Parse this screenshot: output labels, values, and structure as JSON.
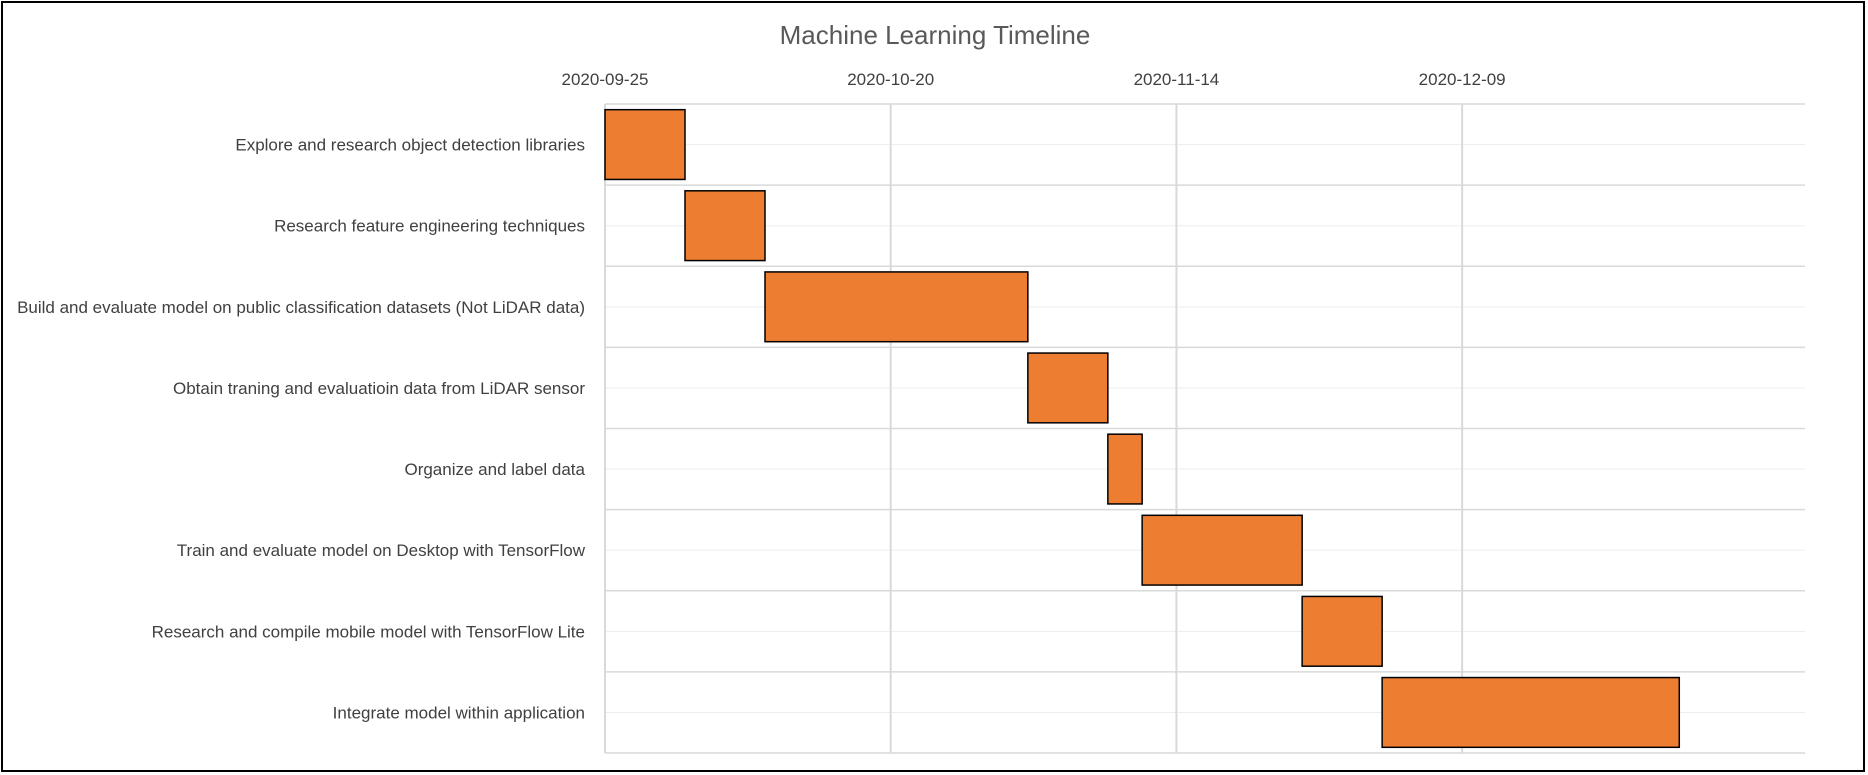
{
  "chart_data": {
    "type": "bar",
    "orientation": "horizontal",
    "subtype": "gantt",
    "title": "Machine Learning Timeline",
    "x_axis_position": "top",
    "grid": true,
    "xlim": [
      "2020-09-25",
      "2021-01-08"
    ],
    "x_ticks": [
      "2020-09-25",
      "2020-10-20",
      "2020-11-14",
      "2020-12-09"
    ],
    "tasks": [
      {
        "name": "Explore and research object detection libraries",
        "start": "2020-09-25",
        "end": "2020-10-02"
      },
      {
        "name": "Research feature engineering techniques",
        "start": "2020-10-02",
        "end": "2020-10-09"
      },
      {
        "name": "Build and evaluate model on public classification datasets (Not LiDAR data)",
        "start": "2020-10-09",
        "end": "2020-11-01"
      },
      {
        "name": "Obtain traning and evaluatioin data from LiDAR sensor",
        "start": "2020-11-01",
        "end": "2020-11-08"
      },
      {
        "name": "Organize and label data",
        "start": "2020-11-08",
        "end": "2020-11-11"
      },
      {
        "name": "Train and evaluate model on Desktop with TensorFlow",
        "start": "2020-11-11",
        "end": "2020-11-25"
      },
      {
        "name": "Research and compile mobile model with TensorFlow Lite",
        "start": "2020-11-25",
        "end": "2020-12-02"
      },
      {
        "name": "Integrate model within application",
        "start": "2020-12-02",
        "end": "2020-12-28"
      }
    ],
    "colors": {
      "bar": "#ED7D31",
      "bar_outline": "#000000",
      "grid": "#D9D9D9",
      "text": "#404040",
      "title": "#595959"
    }
  }
}
